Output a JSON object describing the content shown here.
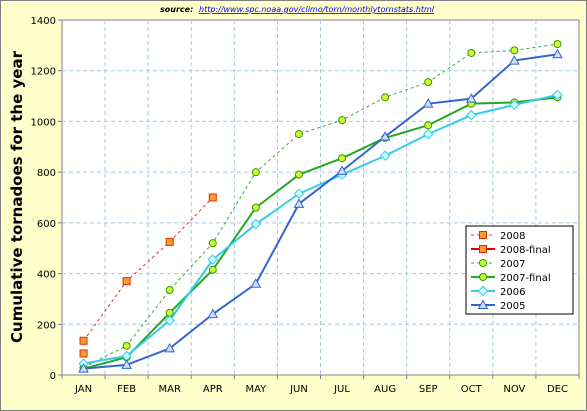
{
  "source": {
    "label": "source:",
    "url": "http://www.spc.noaa.gov/climo/torn/monthlytornstats.html"
  },
  "chart_data": {
    "type": "line",
    "title": "",
    "xlabel": "",
    "ylabel": "Cumulative tornadoes for the year",
    "categories": [
      "JAN",
      "FEB",
      "MAR",
      "APR",
      "MAY",
      "JUN",
      "JUL",
      "AUG",
      "SEP",
      "OCT",
      "NOV",
      "DEC"
    ],
    "ylim": [
      0,
      1400
    ],
    "yticks": [
      0,
      200,
      400,
      600,
      800,
      1000,
      1200,
      1400
    ],
    "grid": true,
    "legend_position": "right",
    "series": [
      {
        "name": "2008",
        "color": "#dd3333",
        "dashed": true,
        "width": 1,
        "marker": "square",
        "marker_fill": "#ff9933",
        "marker_stroke": "#cc3300",
        "values": [
          135,
          370,
          525,
          700,
          null,
          null,
          null,
          null,
          null,
          null,
          null,
          null
        ]
      },
      {
        "name": "2008-final",
        "color": "#dd0000",
        "dashed": false,
        "width": 2,
        "marker": "square",
        "marker_fill": "#ff9933",
        "marker_stroke": "#cc3300",
        "values": [
          85,
          null,
          null,
          null,
          null,
          null,
          null,
          null,
          null,
          null,
          null,
          null
        ]
      },
      {
        "name": "2007",
        "color": "#33aa33",
        "dashed": true,
        "width": 1,
        "marker": "circle",
        "marker_fill": "#ccff33",
        "marker_stroke": "#339900",
        "values": [
          30,
          115,
          335,
          520,
          800,
          950,
          1005,
          1095,
          1155,
          1270,
          1280,
          1305
        ]
      },
      {
        "name": "2007-final",
        "color": "#22aa22",
        "dashed": false,
        "width": 2,
        "marker": "circle",
        "marker_fill": "#ccff33",
        "marker_stroke": "#339900",
        "values": [
          25,
          70,
          245,
          415,
          660,
          790,
          855,
          935,
          985,
          1070,
          1075,
          1095
        ]
      },
      {
        "name": "2006",
        "color": "#33ccee",
        "dashed": false,
        "width": 2,
        "marker": "diamond",
        "marker_fill": "#ccffff",
        "marker_stroke": "#33ccee",
        "values": [
          45,
          75,
          215,
          455,
          595,
          715,
          790,
          865,
          950,
          1025,
          1065,
          1105
        ]
      },
      {
        "name": "2005",
        "color": "#3366cc",
        "dashed": false,
        "width": 2,
        "marker": "triangle",
        "marker_fill": "#ccddff",
        "marker_stroke": "#3366cc",
        "values": [
          25,
          40,
          105,
          240,
          360,
          675,
          805,
          940,
          1070,
          1090,
          1240,
          1265
        ]
      }
    ]
  }
}
